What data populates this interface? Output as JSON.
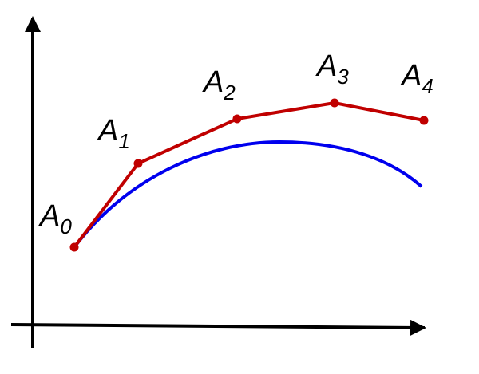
{
  "colors": {
    "axes": "#000000",
    "polyline": "#c00000",
    "curve": "#0000ee"
  },
  "points": [
    {
      "base": "A",
      "sub": "0"
    },
    {
      "base": "A",
      "sub": "1"
    },
    {
      "base": "A",
      "sub": "2"
    },
    {
      "base": "A",
      "sub": "3"
    },
    {
      "base": "A",
      "sub": "4"
    }
  ]
}
